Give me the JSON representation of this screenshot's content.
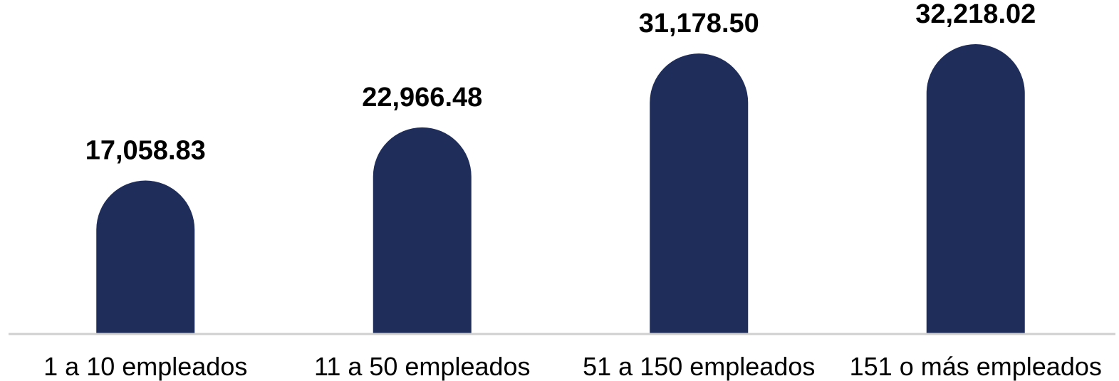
{
  "chart_data": {
    "type": "bar",
    "title": "",
    "xlabel": "",
    "ylabel": "",
    "categories": [
      "1 a 10 empleados",
      "11 a 50 empleados",
      "51 a 150 empleados",
      "151 o más empleados"
    ],
    "values": [
      17058.83,
      22966.48,
      31178.5,
      32218.02
    ],
    "value_labels": [
      "17,058.83",
      "22,966.48",
      "31,178.50",
      "32,218.02"
    ],
    "ylim": [
      0,
      35000
    ],
    "grid": false,
    "legend": "none",
    "bar_color": "#1f2d5a",
    "axis_color": "#d0d0d0"
  }
}
